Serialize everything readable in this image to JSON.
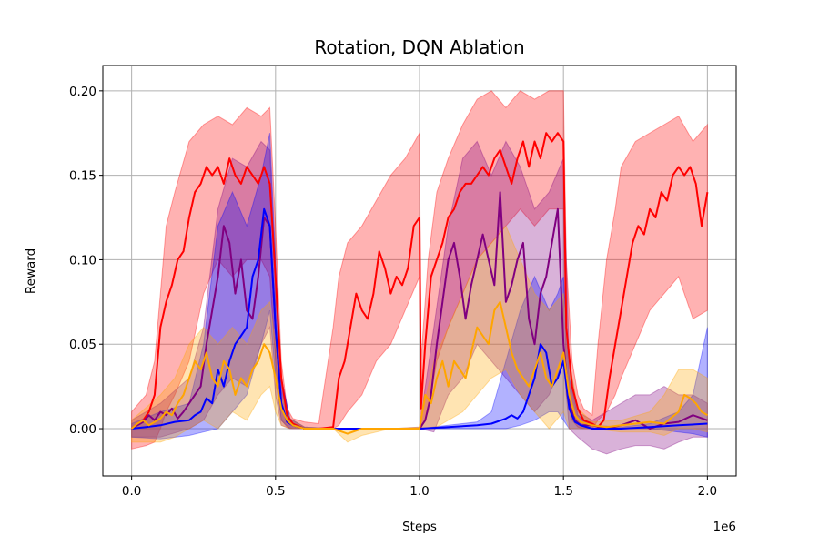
{
  "chart_data": {
    "type": "line",
    "title": "Rotation, DQN Ablation",
    "xlabel": "Steps",
    "ylabel": "Reward",
    "x_offset_label": "1e6",
    "xlim": [
      -0.1,
      2.1
    ],
    "ylim": [
      -0.028,
      0.215
    ],
    "x_ticks": [
      0.0,
      0.5,
      1.0,
      1.5,
      2.0
    ],
    "x_tick_labels": [
      "0.0",
      "0.5",
      "1.0",
      "1.5",
      "2.0"
    ],
    "y_ticks": [
      0.0,
      0.05,
      0.1,
      0.15,
      0.2
    ],
    "y_tick_labels": [
      "0.00",
      "0.05",
      "0.10",
      "0.15",
      "0.20"
    ],
    "grid": true,
    "series": [
      {
        "color": "#ff0000",
        "x": [
          0.0,
          0.02,
          0.04,
          0.06,
          0.08,
          0.1,
          0.12,
          0.14,
          0.16,
          0.18,
          0.2,
          0.22,
          0.24,
          0.26,
          0.28,
          0.3,
          0.32,
          0.34,
          0.36,
          0.38,
          0.4,
          0.42,
          0.44,
          0.46,
          0.48,
          0.5,
          0.52,
          0.54,
          0.56,
          0.6,
          0.65,
          0.7,
          0.72,
          0.74,
          0.76,
          0.78,
          0.8,
          0.82,
          0.84,
          0.86,
          0.88,
          0.9,
          0.92,
          0.94,
          0.96,
          0.98,
          1.0,
          1.005,
          1.02,
          1.04,
          1.06,
          1.08,
          1.1,
          1.12,
          1.14,
          1.16,
          1.18,
          1.2,
          1.22,
          1.24,
          1.26,
          1.28,
          1.3,
          1.32,
          1.34,
          1.36,
          1.38,
          1.4,
          1.42,
          1.44,
          1.46,
          1.48,
          1.5,
          1.51,
          1.53,
          1.55,
          1.57,
          1.6,
          1.62,
          1.64,
          1.66,
          1.68,
          1.7,
          1.72,
          1.74,
          1.76,
          1.78,
          1.8,
          1.82,
          1.84,
          1.86,
          1.88,
          1.9,
          1.92,
          1.94,
          1.96,
          1.98,
          2.0
        ],
        "y": [
          0.0,
          0.003,
          0.005,
          0.01,
          0.02,
          0.06,
          0.075,
          0.085,
          0.1,
          0.105,
          0.125,
          0.14,
          0.145,
          0.155,
          0.15,
          0.155,
          0.145,
          0.16,
          0.15,
          0.145,
          0.155,
          0.15,
          0.145,
          0.155,
          0.145,
          0.09,
          0.03,
          0.008,
          0.003,
          0.0,
          0.0,
          0.001,
          0.03,
          0.04,
          0.06,
          0.08,
          0.07,
          0.065,
          0.08,
          0.105,
          0.095,
          0.08,
          0.09,
          0.085,
          0.095,
          0.12,
          0.125,
          0.012,
          0.05,
          0.09,
          0.1,
          0.11,
          0.125,
          0.13,
          0.14,
          0.145,
          0.145,
          0.15,
          0.155,
          0.15,
          0.16,
          0.165,
          0.155,
          0.145,
          0.16,
          0.17,
          0.155,
          0.17,
          0.16,
          0.175,
          0.17,
          0.175,
          0.17,
          0.06,
          0.025,
          0.012,
          0.005,
          0.003,
          0.001,
          0.005,
          0.03,
          0.05,
          0.07,
          0.09,
          0.11,
          0.12,
          0.115,
          0.13,
          0.125,
          0.14,
          0.135,
          0.15,
          0.155,
          0.15,
          0.155,
          0.145,
          0.12,
          0.14
        ]
      },
      {
        "color": "#800080",
        "x": [
          0.0,
          0.02,
          0.04,
          0.06,
          0.08,
          0.1,
          0.12,
          0.14,
          0.16,
          0.18,
          0.2,
          0.22,
          0.24,
          0.26,
          0.28,
          0.3,
          0.32,
          0.34,
          0.36,
          0.38,
          0.4,
          0.42,
          0.44,
          0.46,
          0.48,
          0.5,
          0.52,
          0.54,
          0.56,
          0.6,
          0.7,
          0.8,
          0.9,
          1.0,
          1.02,
          1.04,
          1.06,
          1.08,
          1.1,
          1.12,
          1.14,
          1.16,
          1.18,
          1.2,
          1.22,
          1.24,
          1.26,
          1.28,
          1.3,
          1.32,
          1.34,
          1.36,
          1.38,
          1.4,
          1.42,
          1.44,
          1.46,
          1.48,
          1.5,
          1.52,
          1.54,
          1.56,
          1.6,
          1.65,
          1.7,
          1.75,
          1.8,
          1.85,
          1.9,
          1.95,
          2.0
        ],
        "y": [
          0.0,
          0.002,
          0.004,
          0.008,
          0.005,
          0.01,
          0.008,
          0.012,
          0.006,
          0.01,
          0.015,
          0.02,
          0.025,
          0.05,
          0.07,
          0.09,
          0.12,
          0.11,
          0.08,
          0.1,
          0.07,
          0.065,
          0.09,
          0.125,
          0.12,
          0.06,
          0.015,
          0.004,
          0.002,
          0.0,
          0.0,
          0.0,
          0.0,
          0.0,
          0.005,
          0.02,
          0.05,
          0.075,
          0.1,
          0.11,
          0.09,
          0.065,
          0.085,
          0.1,
          0.115,
          0.1,
          0.085,
          0.14,
          0.075,
          0.085,
          0.1,
          0.11,
          0.065,
          0.05,
          0.08,
          0.09,
          0.11,
          0.13,
          0.05,
          0.015,
          0.005,
          0.002,
          0.002,
          0.0,
          0.002,
          0.005,
          0.0,
          0.003,
          0.004,
          0.008,
          0.005
        ]
      },
      {
        "color": "#0000ff",
        "x": [
          0.0,
          0.05,
          0.1,
          0.15,
          0.2,
          0.22,
          0.24,
          0.26,
          0.28,
          0.3,
          0.32,
          0.34,
          0.36,
          0.38,
          0.4,
          0.42,
          0.44,
          0.46,
          0.48,
          0.5,
          0.52,
          0.54,
          0.56,
          0.6,
          0.7,
          0.8,
          0.9,
          1.0,
          1.1,
          1.2,
          1.25,
          1.3,
          1.32,
          1.34,
          1.36,
          1.38,
          1.4,
          1.42,
          1.44,
          1.46,
          1.48,
          1.5,
          1.52,
          1.54,
          1.56,
          1.6,
          1.7,
          1.8,
          1.9,
          2.0
        ],
        "y": [
          0.0,
          0.001,
          0.002,
          0.004,
          0.005,
          0.008,
          0.01,
          0.018,
          0.015,
          0.035,
          0.025,
          0.04,
          0.05,
          0.055,
          0.06,
          0.09,
          0.1,
          0.13,
          0.12,
          0.06,
          0.015,
          0.004,
          0.002,
          0.0,
          0.0,
          0.0,
          0.0,
          0.0,
          0.001,
          0.002,
          0.003,
          0.006,
          0.008,
          0.006,
          0.01,
          0.02,
          0.03,
          0.05,
          0.045,
          0.025,
          0.03,
          0.04,
          0.012,
          0.004,
          0.002,
          0.0,
          0.0,
          0.001,
          0.002,
          0.003
        ]
      },
      {
        "color": "#ffa500",
        "x": [
          0.0,
          0.02,
          0.04,
          0.06,
          0.08,
          0.1,
          0.12,
          0.14,
          0.16,
          0.18,
          0.2,
          0.22,
          0.24,
          0.26,
          0.28,
          0.3,
          0.32,
          0.34,
          0.36,
          0.38,
          0.4,
          0.42,
          0.44,
          0.46,
          0.48,
          0.5,
          0.52,
          0.54,
          0.56,
          0.6,
          0.7,
          0.75,
          0.8,
          0.9,
          1.0,
          1.02,
          1.04,
          1.06,
          1.08,
          1.1,
          1.12,
          1.14,
          1.16,
          1.18,
          1.2,
          1.22,
          1.24,
          1.26,
          1.28,
          1.3,
          1.32,
          1.34,
          1.36,
          1.38,
          1.4,
          1.42,
          1.44,
          1.46,
          1.48,
          1.5,
          1.52,
          1.54,
          1.56,
          1.6,
          1.65,
          1.7,
          1.75,
          1.8,
          1.85,
          1.9,
          1.92,
          1.94,
          1.96,
          1.98,
          2.0
        ],
        "y": [
          0.0,
          0.003,
          0.005,
          0.002,
          0.004,
          0.006,
          0.01,
          0.008,
          0.015,
          0.02,
          0.03,
          0.04,
          0.035,
          0.045,
          0.03,
          0.025,
          0.04,
          0.035,
          0.02,
          0.03,
          0.025,
          0.035,
          0.04,
          0.05,
          0.045,
          0.03,
          0.012,
          0.005,
          0.002,
          0.0,
          0.0,
          -0.003,
          0.0,
          0.0,
          0.0,
          0.02,
          0.015,
          0.03,
          0.04,
          0.025,
          0.04,
          0.035,
          0.03,
          0.045,
          0.06,
          0.055,
          0.05,
          0.07,
          0.075,
          0.06,
          0.045,
          0.035,
          0.03,
          0.025,
          0.035,
          0.045,
          0.03,
          0.025,
          0.035,
          0.045,
          0.02,
          0.008,
          0.004,
          0.002,
          0.001,
          0.002,
          0.003,
          0.004,
          0.003,
          0.01,
          0.02,
          0.018,
          0.015,
          0.01,
          0.008
        ]
      }
    ],
    "bands": [
      {
        "color": "#ff0000",
        "x": [
          0.0,
          0.05,
          0.08,
          0.1,
          0.12,
          0.15,
          0.2,
          0.25,
          0.3,
          0.35,
          0.4,
          0.45,
          0.48,
          0.5,
          0.52,
          0.54,
          0.56,
          0.6,
          0.65,
          0.7,
          0.72,
          0.75,
          0.8,
          0.85,
          0.9,
          0.95,
          1.0,
          1.005,
          1.03,
          1.06,
          1.1,
          1.15,
          1.2,
          1.25,
          1.3,
          1.35,
          1.4,
          1.45,
          1.5,
          1.51,
          1.53,
          1.55,
          1.57,
          1.6,
          1.62,
          1.65,
          1.68,
          1.7,
          1.75,
          1.8,
          1.85,
          1.9,
          1.95,
          2.0
        ],
        "upper": [
          0.01,
          0.02,
          0.04,
          0.08,
          0.12,
          0.14,
          0.17,
          0.18,
          0.185,
          0.18,
          0.19,
          0.185,
          0.19,
          0.12,
          0.04,
          0.012,
          0.006,
          0.004,
          0.003,
          0.06,
          0.09,
          0.11,
          0.12,
          0.135,
          0.15,
          0.16,
          0.175,
          0.04,
          0.1,
          0.14,
          0.16,
          0.18,
          0.195,
          0.2,
          0.19,
          0.2,
          0.195,
          0.2,
          0.2,
          0.1,
          0.04,
          0.02,
          0.012,
          0.008,
          0.05,
          0.1,
          0.13,
          0.155,
          0.17,
          0.175,
          0.18,
          0.185,
          0.17,
          0.18
        ],
        "lower": [
          -0.012,
          -0.01,
          -0.008,
          0.0,
          0.01,
          0.02,
          0.04,
          0.08,
          0.1,
          0.09,
          0.1,
          0.1,
          0.09,
          0.04,
          0.005,
          0.001,
          0.0,
          0.0,
          0.0,
          0.0,
          0.002,
          0.01,
          0.02,
          0.04,
          0.05,
          0.07,
          0.09,
          0.0,
          0.01,
          0.04,
          0.06,
          0.08,
          0.1,
          0.11,
          0.12,
          0.13,
          0.12,
          0.13,
          0.13,
          0.02,
          0.005,
          0.001,
          0.0,
          0.0,
          0.005,
          0.01,
          0.02,
          0.03,
          0.05,
          0.07,
          0.08,
          0.09,
          0.065,
          0.07
        ]
      },
      {
        "color": "#800080",
        "x": [
          0.0,
          0.1,
          0.2,
          0.25,
          0.3,
          0.35,
          0.4,
          0.45,
          0.48,
          0.5,
          0.52,
          0.55,
          0.6,
          0.7,
          0.8,
          0.9,
          1.0,
          1.05,
          1.1,
          1.15,
          1.2,
          1.25,
          1.3,
          1.35,
          1.4,
          1.45,
          1.5,
          1.52,
          1.55,
          1.6,
          1.65,
          1.7,
          1.75,
          1.8,
          1.85,
          1.9,
          1.95,
          2.0
        ],
        "upper": [
          0.005,
          0.015,
          0.03,
          0.06,
          0.13,
          0.16,
          0.155,
          0.17,
          0.165,
          0.09,
          0.03,
          0.006,
          0.001,
          0.0,
          0.0,
          0.0,
          0.001,
          0.06,
          0.12,
          0.16,
          0.17,
          0.15,
          0.17,
          0.155,
          0.13,
          0.14,
          0.16,
          0.04,
          0.01,
          0.005,
          0.01,
          0.015,
          0.02,
          0.02,
          0.025,
          0.02,
          0.02,
          0.015
        ],
        "lower": [
          -0.005,
          -0.005,
          0.0,
          0.005,
          0.02,
          0.03,
          0.025,
          0.05,
          0.06,
          0.02,
          0.002,
          0.0,
          0.0,
          0.0,
          0.0,
          0.0,
          0.0,
          -0.002,
          0.02,
          0.03,
          0.05,
          0.04,
          0.03,
          0.02,
          0.01,
          0.02,
          0.04,
          0.0,
          -0.005,
          -0.012,
          -0.015,
          -0.012,
          -0.01,
          -0.01,
          -0.012,
          -0.008,
          -0.005,
          -0.005
        ]
      },
      {
        "color": "#0000ff",
        "x": [
          0.0,
          0.1,
          0.2,
          0.25,
          0.3,
          0.35,
          0.4,
          0.45,
          0.48,
          0.5,
          0.52,
          0.55,
          0.6,
          0.7,
          0.8,
          0.9,
          1.0,
          1.1,
          1.2,
          1.25,
          1.3,
          1.35,
          1.4,
          1.45,
          1.48,
          1.5,
          1.52,
          1.55,
          1.6,
          1.7,
          1.8,
          1.9,
          1.95,
          2.0
        ],
        "upper": [
          0.003,
          0.01,
          0.015,
          0.05,
          0.12,
          0.14,
          0.12,
          0.15,
          0.175,
          0.1,
          0.03,
          0.006,
          0.001,
          0.0,
          0.0,
          0.0,
          0.0,
          0.002,
          0.004,
          0.01,
          0.04,
          0.07,
          0.09,
          0.07,
          0.08,
          0.09,
          0.03,
          0.008,
          0.002,
          0.001,
          0.003,
          0.01,
          0.02,
          0.06
        ],
        "lower": [
          -0.005,
          -0.006,
          -0.004,
          -0.002,
          0.0,
          0.01,
          0.02,
          0.05,
          0.07,
          0.03,
          0.005,
          0.0,
          0.0,
          0.0,
          0.0,
          0.0,
          0.0,
          0.0,
          0.0,
          0.0,
          0.0,
          0.002,
          0.005,
          0.01,
          0.01,
          0.005,
          0.0,
          0.0,
          0.0,
          0.0,
          0.0,
          -0.002,
          -0.003,
          -0.005
        ]
      },
      {
        "color": "#ffa500",
        "x": [
          0.0,
          0.1,
          0.15,
          0.2,
          0.25,
          0.3,
          0.35,
          0.4,
          0.45,
          0.48,
          0.5,
          0.52,
          0.55,
          0.6,
          0.7,
          0.75,
          0.8,
          0.9,
          1.0,
          1.05,
          1.1,
          1.15,
          1.2,
          1.25,
          1.3,
          1.35,
          1.4,
          1.45,
          1.5,
          1.52,
          1.55,
          1.6,
          1.7,
          1.8,
          1.85,
          1.9,
          1.95,
          2.0
        ],
        "upper": [
          0.005,
          0.02,
          0.03,
          0.05,
          0.06,
          0.05,
          0.06,
          0.05,
          0.07,
          0.075,
          0.05,
          0.02,
          0.006,
          0.001,
          0.0,
          0.0,
          0.0,
          0.0,
          0.001,
          0.04,
          0.06,
          0.08,
          0.1,
          0.11,
          0.12,
          0.1,
          0.08,
          0.07,
          0.08,
          0.04,
          0.012,
          0.004,
          0.005,
          0.01,
          0.02,
          0.035,
          0.035,
          0.03
        ],
        "lower": [
          -0.008,
          -0.008,
          -0.005,
          0.0,
          0.005,
          0.0,
          0.01,
          0.005,
          0.02,
          0.025,
          0.01,
          0.002,
          0.0,
          0.0,
          0.0,
          -0.008,
          -0.004,
          0.0,
          0.0,
          0.0,
          0.005,
          0.01,
          0.02,
          0.03,
          0.035,
          0.02,
          0.01,
          0.0,
          0.01,
          0.0,
          0.0,
          0.0,
          -0.002,
          -0.002,
          -0.004,
          0.0,
          0.0,
          -0.002
        ]
      }
    ]
  }
}
